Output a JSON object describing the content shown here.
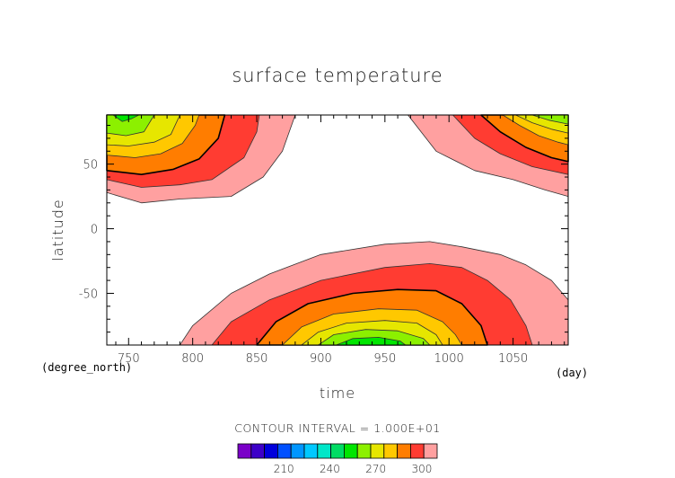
{
  "chart_data": {
    "type": "contour",
    "title": "surface temperature",
    "xlabel": "time",
    "ylabel": "latitude",
    "x_unit": "(day)",
    "y_unit": "(degree_north)",
    "xlim": [
      733,
      1093
    ],
    "ylim": [
      -90,
      88
    ],
    "x_ticks": [
      750,
      800,
      850,
      900,
      950,
      1000,
      1050
    ],
    "y_ticks": [
      -50,
      0,
      50
    ],
    "contour_interval_text": "CONTOUR INTERVAL = 1.000E+01",
    "colorbar": {
      "tick_labels": [
        "210",
        "240",
        "270",
        "300"
      ],
      "tick_values": [
        210,
        240,
        270,
        300
      ],
      "min": 180,
      "max": 310,
      "colors": [
        "#7a00c8",
        "#3d00c8",
        "#0000dc",
        "#0050ff",
        "#0096ff",
        "#00c8ff",
        "#00e6c8",
        "#00dc64",
        "#00e600",
        "#8cf000",
        "#e6e600",
        "#ffc800",
        "#ff7d00",
        "#ff3c32",
        "#ffa0a0"
      ]
    },
    "regions": [
      {
        "level": 300,
        "color": "#ffa0a0",
        "line": "thin",
        "points": [
          [
            733,
            28
          ],
          [
            760,
            20
          ],
          [
            790,
            23
          ],
          [
            830,
            25
          ],
          [
            855,
            40
          ],
          [
            870,
            60
          ],
          [
            880,
            88
          ],
          [
            733,
            88
          ]
        ]
      },
      {
        "level": 300,
        "color": "#ffa0a0",
        "line": "thin",
        "points": [
          [
            968,
            88
          ],
          [
            990,
            60
          ],
          [
            1020,
            45
          ],
          [
            1050,
            38
          ],
          [
            1075,
            30
          ],
          [
            1093,
            25
          ],
          [
            1093,
            88
          ]
        ]
      },
      {
        "level": 300,
        "color": "#ffa0a0",
        "line": "thin",
        "points": [
          [
            790,
            -90
          ],
          [
            800,
            -75
          ],
          [
            830,
            -50
          ],
          [
            860,
            -35
          ],
          [
            900,
            -20
          ],
          [
            950,
            -12
          ],
          [
            985,
            -10
          ],
          [
            1010,
            -14
          ],
          [
            1040,
            -20
          ],
          [
            1060,
            -28
          ],
          [
            1080,
            -40
          ],
          [
            1093,
            -55
          ],
          [
            1093,
            -90
          ]
        ]
      },
      {
        "level": 290,
        "color": "#ff3c32",
        "line": "thin",
        "points": [
          [
            733,
            38
          ],
          [
            760,
            32
          ],
          [
            790,
            34
          ],
          [
            815,
            38
          ],
          [
            840,
            55
          ],
          [
            850,
            75
          ],
          [
            852,
            88
          ],
          [
            733,
            88
          ]
        ]
      },
      {
        "level": 290,
        "color": "#ff3c32",
        "line": "thin",
        "points": [
          [
            1003,
            88
          ],
          [
            1020,
            70
          ],
          [
            1040,
            58
          ],
          [
            1065,
            48
          ],
          [
            1093,
            42
          ],
          [
            1093,
            88
          ]
        ]
      },
      {
        "level": 290,
        "color": "#ff3c32",
        "line": "thin",
        "points": [
          [
            815,
            -90
          ],
          [
            830,
            -72
          ],
          [
            860,
            -55
          ],
          [
            900,
            -40
          ],
          [
            950,
            -30
          ],
          [
            985,
            -27
          ],
          [
            1010,
            -30
          ],
          [
            1030,
            -40
          ],
          [
            1048,
            -55
          ],
          [
            1060,
            -75
          ],
          [
            1065,
            -90
          ]
        ]
      },
      {
        "level": 280,
        "color": "#ff7d00",
        "line": "black",
        "points": [
          [
            733,
            45
          ],
          [
            760,
            42
          ],
          [
            785,
            46
          ],
          [
            805,
            54
          ],
          [
            820,
            70
          ],
          [
            825,
            88
          ],
          [
            733,
            88
          ]
        ]
      },
      {
        "level": 280,
        "color": "#ff7d00",
        "line": "black",
        "points": [
          [
            1025,
            88
          ],
          [
            1040,
            75
          ],
          [
            1060,
            63
          ],
          [
            1080,
            55
          ],
          [
            1093,
            52
          ],
          [
            1093,
            88
          ]
        ]
      },
      {
        "level": 280,
        "color": "#ff7d00",
        "line": "black",
        "points": [
          [
            850,
            -90
          ],
          [
            865,
            -72
          ],
          [
            890,
            -58
          ],
          [
            925,
            -50
          ],
          [
            960,
            -47
          ],
          [
            990,
            -48
          ],
          [
            1010,
            -58
          ],
          [
            1025,
            -75
          ],
          [
            1030,
            -90
          ]
        ]
      },
      {
        "level": 270,
        "color": "#ffc800",
        "line": "thin",
        "points": [
          [
            733,
            57
          ],
          [
            755,
            55
          ],
          [
            775,
            58
          ],
          [
            792,
            66
          ],
          [
            802,
            80
          ],
          [
            805,
            88
          ],
          [
            733,
            88
          ]
        ]
      },
      {
        "level": 270,
        "color": "#ffc800",
        "line": "thin",
        "points": [
          [
            1042,
            88
          ],
          [
            1055,
            80
          ],
          [
            1070,
            72
          ],
          [
            1085,
            67
          ],
          [
            1093,
            65
          ],
          [
            1093,
            88
          ]
        ]
      },
      {
        "level": 270,
        "color": "#ffc800",
        "line": "thin",
        "points": [
          [
            870,
            -90
          ],
          [
            885,
            -76
          ],
          [
            910,
            -66
          ],
          [
            945,
            -62
          ],
          [
            975,
            -63
          ],
          [
            995,
            -72
          ],
          [
            1005,
            -82
          ],
          [
            1010,
            -90
          ]
        ]
      },
      {
        "level": 260,
        "color": "#e6e600",
        "line": "thin",
        "points": [
          [
            733,
            65
          ],
          [
            750,
            64
          ],
          [
            770,
            67
          ],
          [
            783,
            73
          ],
          [
            790,
            88
          ],
          [
            733,
            88
          ]
        ]
      },
      {
        "level": 260,
        "color": "#e6e600",
        "line": "thin",
        "points": [
          [
            1052,
            88
          ],
          [
            1065,
            82
          ],
          [
            1080,
            77
          ],
          [
            1093,
            74
          ],
          [
            1093,
            88
          ]
        ]
      },
      {
        "level": 260,
        "color": "#e6e600",
        "line": "thin",
        "points": [
          [
            885,
            -90
          ],
          [
            898,
            -80
          ],
          [
            920,
            -73
          ],
          [
            950,
            -71
          ],
          [
            975,
            -73
          ],
          [
            990,
            -82
          ],
          [
            995,
            -90
          ]
        ]
      },
      {
        "level": 250,
        "color": "#8cf000",
        "line": "thin",
        "points": [
          [
            733,
            74
          ],
          [
            748,
            72
          ],
          [
            762,
            75
          ],
          [
            770,
            88
          ],
          [
            733,
            88
          ]
        ]
      },
      {
        "level": 250,
        "color": "#8cf000",
        "line": "thin",
        "points": [
          [
            1065,
            88
          ],
          [
            1078,
            84
          ],
          [
            1093,
            81
          ],
          [
            1093,
            88
          ]
        ]
      },
      {
        "level": 250,
        "color": "#8cf000",
        "line": "thin",
        "points": [
          [
            898,
            -90
          ],
          [
            910,
            -82
          ],
          [
            935,
            -78
          ],
          [
            960,
            -79
          ],
          [
            980,
            -85
          ],
          [
            985,
            -90
          ]
        ]
      },
      {
        "level": 240,
        "color": "#00e600",
        "line": "thin",
        "points": [
          [
            738,
            88
          ],
          [
            745,
            83
          ],
          [
            752,
            85
          ],
          [
            758,
            88
          ]
        ]
      },
      {
        "level": 240,
        "color": "#00e600",
        "line": "thin",
        "points": [
          [
            912,
            -90
          ],
          [
            925,
            -85
          ],
          [
            945,
            -84
          ],
          [
            962,
            -87
          ],
          [
            966,
            -90
          ]
        ]
      }
    ]
  }
}
